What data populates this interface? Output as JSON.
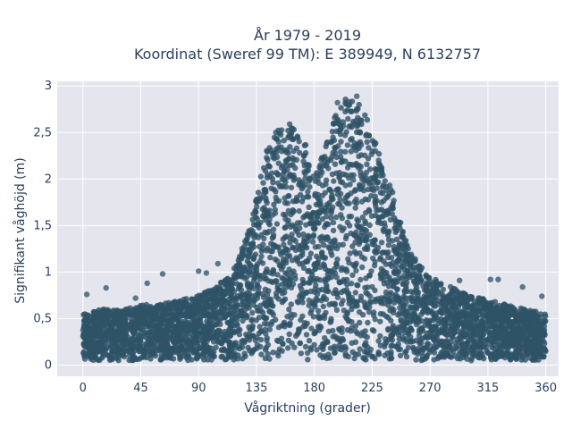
{
  "chart_data": {
    "type": "scatter",
    "title": "År 1979 - 2019",
    "subtitle": "Koordinat (Sweref 99 TM): E 389949, N 6132757",
    "xlabel": "Vågriktning (grader)",
    "ylabel": "Signifikant våghöjd (m)",
    "xlim": [
      -20,
      370
    ],
    "ylim": [
      -0.12,
      3.05
    ],
    "xticks": [
      0,
      45,
      90,
      135,
      180,
      225,
      270,
      315,
      360
    ],
    "xtick_labels": [
      "0",
      "45",
      "90",
      "135",
      "180",
      "225",
      "270",
      "315",
      "360"
    ],
    "yticks": [
      0,
      0.5,
      1,
      1.5,
      2,
      2.5,
      3
    ],
    "ytick_labels": [
      "0",
      "0,5",
      "1",
      "1,5",
      "2",
      "2,5",
      "3"
    ],
    "grid": true,
    "series": [
      {
        "color": "#2e5266",
        "envelope": {
          "x": [
            0,
            15,
            30,
            45,
            60,
            75,
            90,
            105,
            120,
            130,
            140,
            150,
            160,
            170,
            180,
            190,
            200,
            210,
            220,
            230,
            240,
            250,
            260,
            270,
            285,
            300,
            315,
            330,
            345,
            360
          ],
          "upper": [
            0.55,
            0.6,
            0.6,
            0.65,
            0.65,
            0.7,
            0.75,
            0.85,
            1.1,
            1.5,
            2.2,
            2.55,
            2.6,
            2.55,
            2.0,
            2.4,
            2.85,
            2.9,
            2.7,
            2.3,
            1.9,
            1.4,
            1.1,
            0.95,
            0.85,
            0.75,
            0.7,
            0.65,
            0.6,
            0.55
          ],
          "lower": [
            0.05,
            0.05,
            0.05,
            0.05,
            0.05,
            0.05,
            0.05,
            0.05,
            0.05,
            0.05,
            0.05,
            0.05,
            0.05,
            0.05,
            0.05,
            0.05,
            0.05,
            0.05,
            0.05,
            0.05,
            0.05,
            0.05,
            0.05,
            0.05,
            0.05,
            0.05,
            0.05,
            0.05,
            0.05,
            0.05
          ]
        },
        "outliers": [
          {
            "x": 3,
            "y": 0.76
          },
          {
            "x": 18,
            "y": 0.83
          },
          {
            "x": 41,
            "y": 0.72
          },
          {
            "x": 50,
            "y": 0.88
          },
          {
            "x": 62,
            "y": 0.98
          },
          {
            "x": 90,
            "y": 1.01
          },
          {
            "x": 96,
            "y": 0.99
          },
          {
            "x": 105,
            "y": 1.09
          },
          {
            "x": 293,
            "y": 0.91
          },
          {
            "x": 317,
            "y": 0.92
          },
          {
            "x": 323,
            "y": 0.92
          },
          {
            "x": 342,
            "y": 0.84
          },
          {
            "x": 357,
            "y": 0.74
          },
          {
            "x": 198,
            "y": 2.82
          },
          {
            "x": 213,
            "y": 2.89
          }
        ]
      }
    ]
  }
}
